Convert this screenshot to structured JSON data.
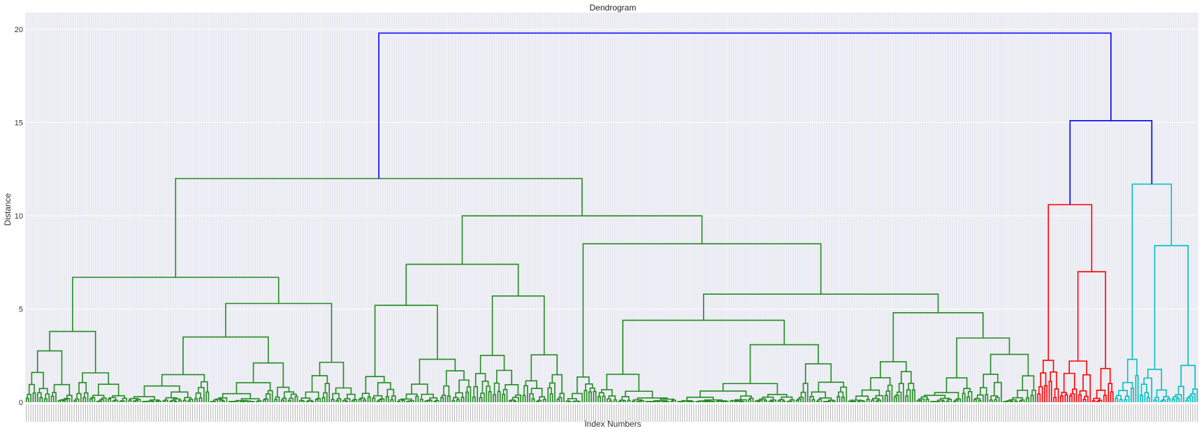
{
  "chart_data": {
    "type": "dendrogram",
    "title": "Dendrogram",
    "xlabel": "Index Numbers",
    "ylabel": "Distance",
    "ylim": [
      0,
      20.9
    ],
    "yticks": [
      0,
      5,
      10,
      15,
      20
    ],
    "grid": true,
    "leaf_count": 515,
    "colors": {
      "above_threshold": "#0000ff",
      "cluster_1": "#228b22",
      "cluster_2": "#ff0000",
      "cluster_3": "#00bfbf",
      "background": "#eaeaf2",
      "grid": "#ffffff"
    },
    "clusters": [
      {
        "color_key": "cluster_1",
        "first_leaf": 0,
        "last_leaf": 443
      },
      {
        "color_key": "cluster_2",
        "first_leaf": 444,
        "last_leaf": 477
      },
      {
        "color_key": "cluster_3",
        "first_leaf": 478,
        "last_leaf": 514
      }
    ],
    "links": [
      {
        "id": "root",
        "h": 19.8,
        "left": "green_root",
        "right": "rc_node",
        "color": "above_threshold"
      },
      {
        "id": "rc_node",
        "h": 15.1,
        "left": "red_root",
        "right": "cyan_root",
        "color": "above_threshold"
      },
      {
        "id": "green_root",
        "h": 12.0,
        "left": "A",
        "right": "B",
        "color": "cluster_1"
      },
      {
        "id": "A",
        "h": 6.7,
        "left": "A1",
        "right": "A2",
        "color": "cluster_1"
      },
      {
        "id": "A1",
        "h": 3.8,
        "left": [
          0,
          20
        ],
        "right": [
          21,
          44
        ],
        "color": "cluster_1"
      },
      {
        "id": "A2",
        "h": 5.3,
        "left": "A2a",
        "right": [
          120,
          145
        ],
        "color": "cluster_1"
      },
      {
        "id": "A2a",
        "h": 3.5,
        "left": [
          45,
          80
        ],
        "right": [
          81,
          119
        ],
        "color": "cluster_1"
      },
      {
        "id": "B",
        "h": 10.0,
        "left": "B1",
        "right": "B2",
        "color": "cluster_1"
      },
      {
        "id": "B1",
        "h": 7.4,
        "left": "B1a",
        "right": "B1b",
        "color": "cluster_1"
      },
      {
        "id": "B1a",
        "h": 5.2,
        "left": [
          146,
          162
        ],
        "right": [
          163,
          195
        ],
        "color": "cluster_1"
      },
      {
        "id": "B1b",
        "h": 5.7,
        "left": [
          196,
          217
        ],
        "right": [
          218,
          236
        ],
        "color": "cluster_1"
      },
      {
        "id": "B2",
        "h": 8.5,
        "left": [
          237,
          250
        ],
        "right": "B2b",
        "color": "cluster_1"
      },
      {
        "id": "B2b",
        "h": 5.8,
        "left": "B2b1",
        "right": "B2b2",
        "color": "cluster_1"
      },
      {
        "id": "B2b1",
        "h": 4.4,
        "left": [
          251,
          285
        ],
        "right": [
          286,
          360
        ],
        "color": "cluster_1"
      },
      {
        "id": "B2b2",
        "h": 4.8,
        "left": [
          361,
          390
        ],
        "right": [
          391,
          443
        ],
        "color": "cluster_1"
      },
      {
        "id": "red_root",
        "h": 10.6,
        "left": [
          444,
          453
        ],
        "right": "R2",
        "color": "cluster_2"
      },
      {
        "id": "R2",
        "h": 7.0,
        "left": [
          454,
          467
        ],
        "right": [
          468,
          477
        ],
        "color": "cluster_2"
      },
      {
        "id": "cyan_root",
        "h": 11.7,
        "left": [
          478,
          488
        ],
        "right": "C2",
        "color": "cluster_3"
      },
      {
        "id": "C2",
        "h": 8.4,
        "left": [
          489,
          502
        ],
        "right": [
          503,
          514
        ],
        "color": "cluster_3"
      }
    ]
  }
}
